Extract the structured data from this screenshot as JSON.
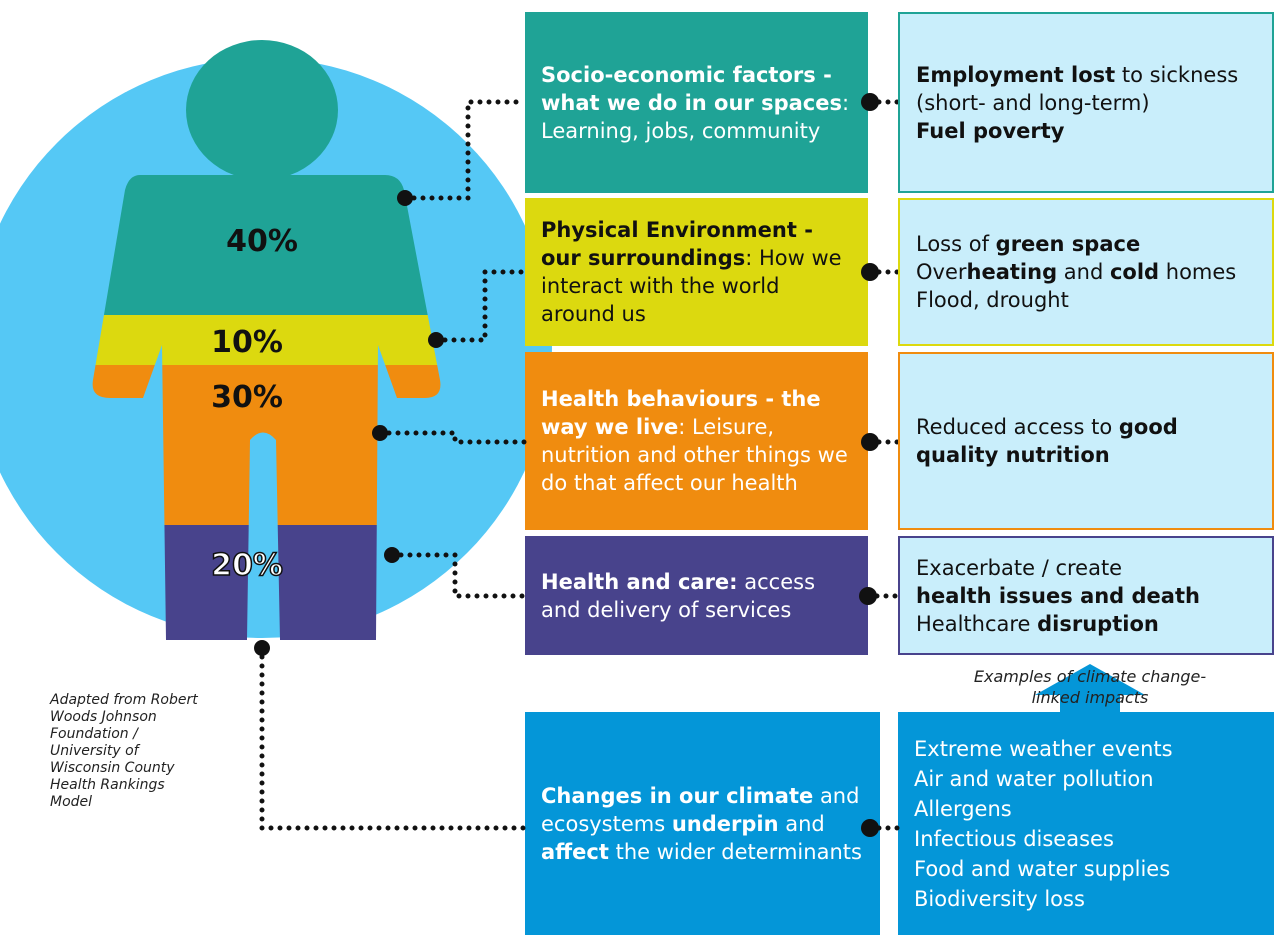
{
  "figure": {
    "labels": [
      "40%",
      "10%",
      "30%",
      "20%"
    ]
  },
  "determinants": [
    {
      "lines": [
        [
          {
            "text": "Socio-economic factors - what we do in our spaces",
            "bold": true
          },
          {
            "text": ": Learning, jobs, community"
          }
        ]
      ]
    },
    {
      "lines": [
        [
          {
            "text": "Physical Environment - our surroundings",
            "bold": true
          },
          {
            "text": ": How we interact with the world around us"
          }
        ]
      ]
    },
    {
      "lines": [
        [
          {
            "text": "Health behaviours - the way we live",
            "bold": true
          },
          {
            "text": ": Leisure, nutrition and other things we do that affect our health"
          }
        ]
      ]
    },
    {
      "lines": [
        [
          {
            "text": "Health and care:",
            "bold": true
          },
          {
            "text": " access and delivery of services"
          }
        ]
      ]
    }
  ],
  "impacts": [
    {
      "lines": [
        [
          {
            "text": "Employment lost",
            "bold": true
          },
          {
            "text": " to sickness (short- and long-term)"
          }
        ],
        [
          {
            "text": "Fuel poverty",
            "bold": true
          }
        ]
      ]
    },
    {
      "lines": [
        [
          {
            "text": "Loss of "
          },
          {
            "text": "green space",
            "bold": true
          }
        ],
        [
          {
            "text": "Over"
          },
          {
            "text": "heating",
            "bold": true
          },
          {
            "text": " and "
          },
          {
            "text": "cold",
            "bold": true
          },
          {
            "text": " homes"
          }
        ],
        [
          {
            "text": "Flood, drought"
          }
        ]
      ]
    },
    {
      "lines": [
        [
          {
            "text": "Reduced access to "
          },
          {
            "text": "good quality nutrition",
            "bold": true
          }
        ]
      ]
    },
    {
      "lines": [
        [
          {
            "text": "Exacerbate / create"
          }
        ],
        [
          {
            "text": "health issues and death",
            "bold": true
          }
        ],
        [
          {
            "text": "Healthcare "
          },
          {
            "text": "disruption",
            "bold": true
          }
        ]
      ]
    }
  ],
  "climate": {
    "lines": [
      [
        {
          "text": "Changes in our climate",
          "bold": true
        },
        {
          "text": " and ecosystems "
        },
        {
          "text": "underpin",
          "bold": true
        },
        {
          "text": " and "
        },
        {
          "text": "affect",
          "bold": true
        },
        {
          "text": " the wider determinants"
        }
      ]
    ]
  },
  "climate_impacts": {
    "lines": [
      [
        {
          "text": "Extreme weather events"
        }
      ],
      [
        {
          "text": "Air and water pollution"
        }
      ],
      [
        {
          "text": "Allergens"
        }
      ],
      [
        {
          "text": "Infectious diseases"
        }
      ],
      [
        {
          "text": "Food and water supplies"
        }
      ],
      [
        {
          "text": "Biodiversity loss"
        }
      ]
    ]
  },
  "caption": "Examples of climate change-linked impacts",
  "source": "Adapted from Robert Woods Johnson Foundation / University of Wisconsin County Health Rankings Model"
}
